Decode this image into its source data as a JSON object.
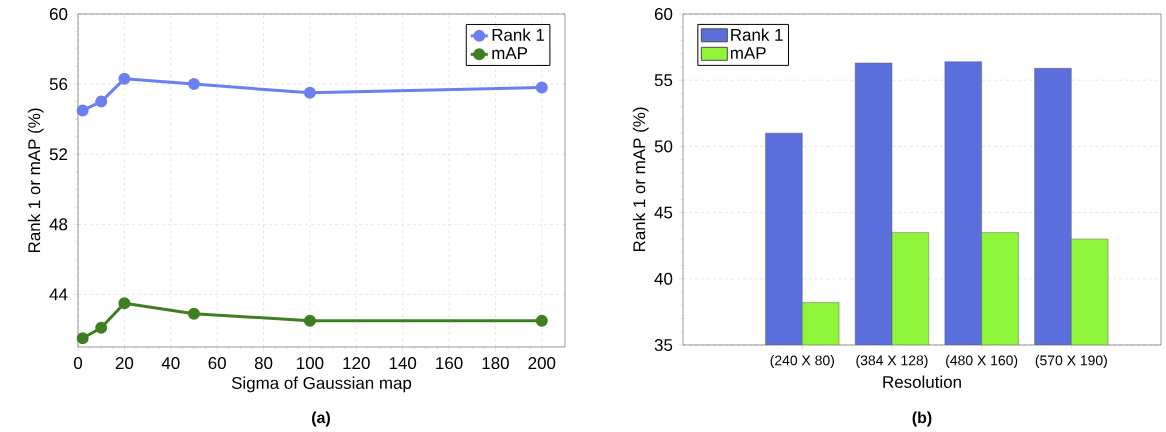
{
  "chart_data": [
    {
      "type": "line",
      "xlabel": "Sigma of Gaussian map",
      "ylabel": "Rank 1 or mAP (%)",
      "annotations": [
        "(a)"
      ],
      "x": [
        2,
        10,
        20,
        50,
        100,
        200
      ],
      "series": [
        {
          "name": "Rank 1",
          "color": "#6a80f0",
          "values": [
            54.5,
            55.0,
            56.3,
            56.0,
            55.5,
            55.8
          ]
        },
        {
          "name": "mAP",
          "color": "#3f7f22",
          "values": [
            41.5,
            42.1,
            43.5,
            42.9,
            42.5,
            42.5
          ]
        }
      ],
      "xlim": [
        0,
        210
      ],
      "ylim": [
        41,
        60
      ],
      "xticks": [
        0,
        20,
        40,
        60,
        80,
        100,
        120,
        140,
        160,
        180,
        200
      ],
      "yticks": [
        44,
        48,
        52,
        56,
        60
      ],
      "grid": true,
      "legend": "top right",
      "marker": "circle",
      "line_style": "solid"
    },
    {
      "type": "bar",
      "xlabel": "Resolution",
      "ylabel": "Rank 1 or mAP (%)",
      "annotations": [
        "(b)"
      ],
      "categories": [
        "(240 X 80)",
        "(384 X 128)",
        "(480 X 160)",
        "(570 X 190)"
      ],
      "series": [
        {
          "name": "Rank 1",
          "color": "#5a6fdc",
          "values": [
            51.0,
            56.3,
            56.4,
            55.9
          ]
        },
        {
          "name": "mAP",
          "color": "#8ef53a",
          "values": [
            38.2,
            43.5,
            43.5,
            43.0
          ]
        }
      ],
      "ylim": [
        35,
        60
      ],
      "yticks": [
        35,
        40,
        45,
        50,
        55,
        60
      ],
      "grid": "y",
      "legend": "top left"
    }
  ]
}
